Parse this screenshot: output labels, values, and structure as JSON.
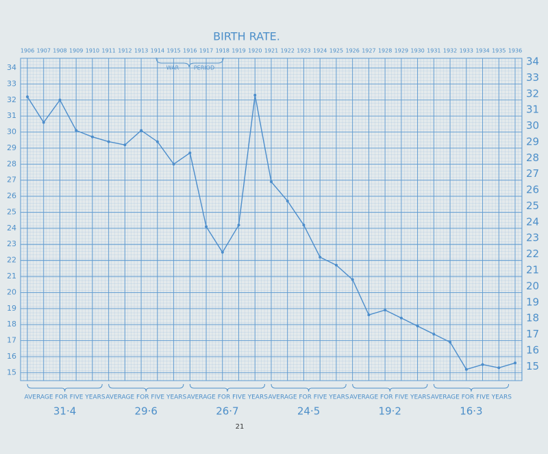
{
  "chart_data": {
    "type": "line",
    "title": "BIRTH RATE.",
    "x": [
      1906,
      1907,
      1908,
      1909,
      1910,
      1911,
      1912,
      1913,
      1914,
      1915,
      1916,
      1917,
      1918,
      1919,
      1920,
      1921,
      1922,
      1923,
      1924,
      1925,
      1926,
      1927,
      1928,
      1929,
      1930,
      1931,
      1932,
      1933,
      1934,
      1935,
      1936
    ],
    "series": [
      {
        "name": "Birth rate",
        "color": "#4a8ccb",
        "values": [
          32.2,
          30.6,
          32.0,
          30.1,
          29.7,
          29.4,
          29.2,
          30.1,
          29.4,
          28.0,
          28.7,
          24.1,
          22.5,
          24.2,
          32.3,
          26.9,
          25.7,
          24.2,
          22.2,
          21.7,
          20.8,
          18.6,
          18.9,
          18.4,
          17.9,
          17.4,
          16.9,
          15.2,
          15.5,
          15.3,
          15.6
        ]
      }
    ],
    "xlim": [
      1906,
      1936
    ],
    "xticks": [
      1906,
      1907,
      1908,
      1909,
      1910,
      1911,
      1912,
      1913,
      1914,
      1915,
      1916,
      1917,
      1918,
      1919,
      1920,
      1921,
      1922,
      1923,
      1924,
      1925,
      1926,
      1927,
      1928,
      1929,
      1930,
      1931,
      1932,
      1933,
      1934,
      1935,
      1936
    ],
    "ylim": [
      14.5,
      34.6
    ],
    "yticks": [
      15,
      16,
      17,
      18,
      19,
      20,
      21,
      22,
      23,
      24,
      25,
      26,
      27,
      28,
      29,
      30,
      31,
      32,
      33,
      34
    ],
    "grid": true,
    "annotations": [
      "WAR",
      "PERIOD"
    ],
    "averages": [
      {
        "label": "AVERAGE FOR FIVE YEARS",
        "value": "31·4"
      },
      {
        "label": "AVERAGE FOR FIVE YEARS",
        "value": "29·6"
      },
      {
        "label": "AVERAGE FOR FIVE YEARS",
        "value": "26·7"
      },
      {
        "label": "AVERAGE FOR FIVE YEARS",
        "value": "24·5"
      },
      {
        "label": "AVERAGE FOR FIVE YEARS",
        "value": "19·2"
      },
      {
        "label": "AVERAGE FOR FIVE YEARS",
        "value": "16·3"
      }
    ],
    "page_number": "21"
  }
}
